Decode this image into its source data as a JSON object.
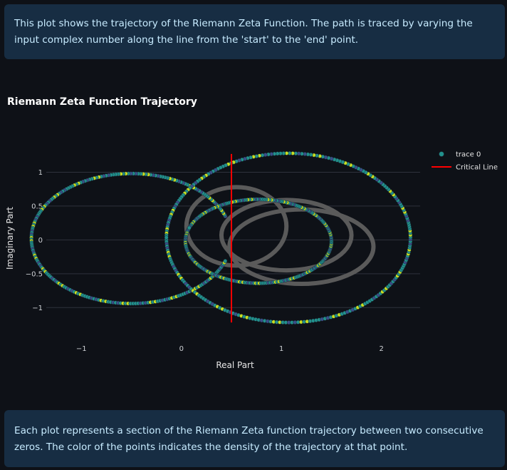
{
  "info_top": "This plot shows the trajectory of the Riemann Zeta Function. The path is traced by varying the input complex number along the line from the 'start' to the 'end' point.",
  "chart_title": "Riemann Zeta Function Trajectory",
  "info_bottom": "Each plot represents a section of the Riemann Zeta function trajectory between two consecutive zeros. The color of the points indicates the density of the trajectory at that point.",
  "colors": {
    "background": "#0e1117",
    "info_box": "#172d43",
    "info_text": "#c7ebff",
    "trail": "#5a5a5a",
    "critical_line": "#ff0000",
    "point_dark": "#3b4f8a",
    "point_mid": "#21918c",
    "point_light": "#c8e020"
  },
  "chart_data": {
    "type": "scatter",
    "title": "Riemann Zeta Function Trajectory",
    "xlabel": "Real Part",
    "ylabel": "Imaginary Part",
    "xlim": [
      -1.6,
      2.6
    ],
    "ylim": [
      -1.25,
      1.3
    ],
    "x_ticks": [
      -1,
      0,
      1,
      2
    ],
    "x_tick_labels": [
      "−1",
      "0",
      "1",
      "2"
    ],
    "y_ticks": [
      -1,
      -0.5,
      0,
      0.5,
      1
    ],
    "y_tick_labels": [
      "−1",
      "−0.5",
      "0",
      "0.5",
      "1"
    ],
    "grid": "horizontal",
    "legend_position": "top-right",
    "series": [
      {
        "name": "trace 0",
        "kind": "markers",
        "loops": [
          {
            "cx": -0.5,
            "cy": 0.02,
            "rx": 1.0,
            "ry": 0.96,
            "t_start": 0.35,
            "t_end": 5.93
          },
          {
            "cx": 1.07,
            "cy": 0.03,
            "rx": 1.22,
            "ry": 1.25,
            "t_start": 3.14,
            "t_end": 9.42
          },
          {
            "cx": 0.77,
            "cy": -0.02,
            "rx": 0.73,
            "ry": 0.62,
            "t_start": 2.8,
            "t_end": 9.1
          }
        ]
      },
      {
        "name": "Critical Line",
        "kind": "line",
        "x": [
          0.5,
          0.5
        ],
        "y": [
          -1.22,
          1.27
        ]
      }
    ],
    "background_trail": [
      {
        "cx": 1.05,
        "cy": 0.07,
        "rx": 0.65,
        "ry": 0.52
      },
      {
        "cx": 1.2,
        "cy": -0.1,
        "rx": 0.72,
        "ry": 0.55
      },
      {
        "cx": 0.55,
        "cy": 0.2,
        "rx": 0.5,
        "ry": 0.58
      }
    ],
    "legend": [
      "trace 0",
      "Critical Line"
    ]
  }
}
